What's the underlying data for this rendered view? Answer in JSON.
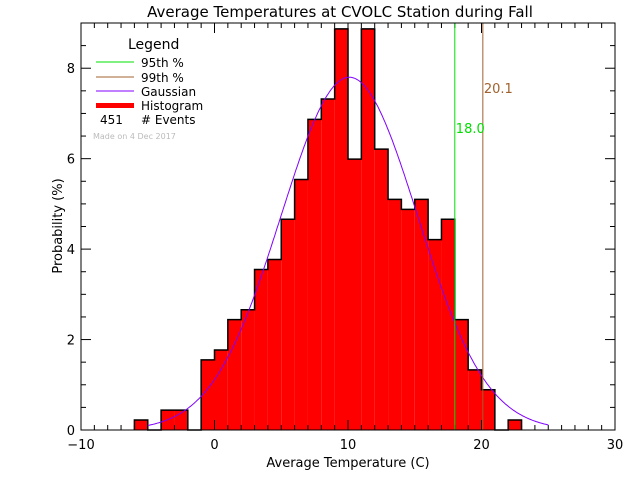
{
  "chart_data": {
    "type": "bar",
    "title": "Average Temperatures at CVOLC Station during Fall",
    "xlabel": "Average Temperature (C)",
    "ylabel": "Probability (%)",
    "xlim": [
      -10,
      30
    ],
    "ylim": [
      0,
      9
    ],
    "xticks": [
      "−10",
      "0",
      "10",
      "20",
      "30"
    ],
    "xtick_values": [
      -10,
      0,
      10,
      20,
      30
    ],
    "yticks": [
      "0",
      "2",
      "4",
      "6",
      "8"
    ],
    "ytick_values": [
      0,
      2,
      4,
      6,
      8
    ],
    "bin_edges_start": [
      -6,
      -5,
      -4,
      -3,
      -2,
      -1,
      0,
      1,
      2,
      3,
      4,
      5,
      6,
      7,
      8,
      9,
      10,
      11,
      12,
      13,
      14,
      15,
      16,
      17,
      18,
      19,
      20,
      21,
      22
    ],
    "bin_width": 1,
    "values": [
      0.22,
      0,
      0.44,
      0.44,
      0,
      1.55,
      1.77,
      2.44,
      2.66,
      3.55,
      3.77,
      4.66,
      5.54,
      6.87,
      7.32,
      8.87,
      5.99,
      8.87,
      6.21,
      5.1,
      4.88,
      5.1,
      4.21,
      4.66,
      2.44,
      1.33,
      0.89,
      0,
      0.22
    ],
    "gaussian": {
      "mean": 10.1,
      "sigma": 5.12,
      "peak": 7.8,
      "range": [
        -5,
        25
      ]
    },
    "percentile_95": {
      "value": 18.0,
      "label": "18.0",
      "color": "#00e000"
    },
    "percentile_99": {
      "value": 20.1,
      "label": "20.1",
      "color": "#a0622d"
    },
    "colors": {
      "histogram": "#ff0000",
      "gaussian": "#8000ff"
    },
    "legend": {
      "title": "Legend",
      "position": "top-left",
      "items": [
        "95th %",
        "99th %",
        "Gaussian",
        "Histogram"
      ],
      "events_count": "451",
      "events_label": "# Events",
      "note": "Made on 4 Dec 2017"
    }
  }
}
